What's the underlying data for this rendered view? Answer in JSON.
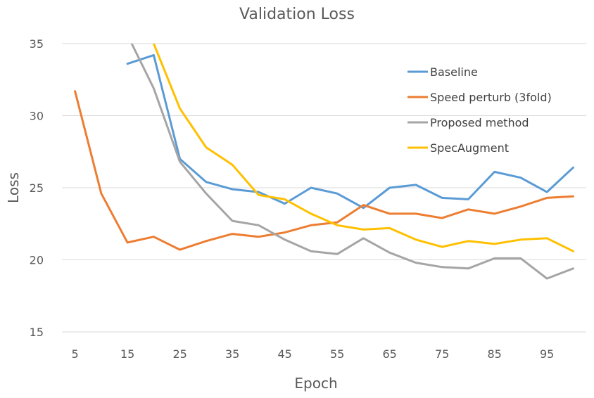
{
  "chart_data": {
    "type": "line",
    "title": "Validation Loss",
    "xlabel": "Epoch",
    "ylabel": "Loss",
    "x": [
      5,
      10,
      15,
      20,
      25,
      30,
      35,
      40,
      45,
      50,
      55,
      60,
      65,
      70,
      75,
      80,
      85,
      90,
      95,
      100
    ],
    "x_tick_labels": [
      "5",
      "15",
      "25",
      "35",
      "45",
      "55",
      "65",
      "75",
      "85",
      "95"
    ],
    "y_ticks": [
      15,
      20,
      25,
      30,
      35
    ],
    "ylim": [
      15,
      35
    ],
    "grid": "horizontal",
    "legend_position": "top-right",
    "series": [
      {
        "name": "Baseline",
        "color": "#5b9bd5",
        "values": [
          null,
          null,
          33.6,
          34.2,
          27.0,
          25.4,
          24.9,
          24.7,
          23.9,
          25.0,
          24.6,
          23.6,
          25.0,
          25.2,
          24.3,
          24.2,
          26.1,
          25.7,
          24.7,
          26.4
        ]
      },
      {
        "name": "Speed perturb (3fold)",
        "color": "#ed7d31",
        "values": [
          31.7,
          24.6,
          21.2,
          21.6,
          20.7,
          21.3,
          21.8,
          21.6,
          21.9,
          22.4,
          22.6,
          23.8,
          23.2,
          23.2,
          22.9,
          23.5,
          23.2,
          23.7,
          24.3,
          24.4
        ]
      },
      {
        "name": "Proposed method",
        "color": "#a5a5a5",
        "values": [
          null,
          null,
          35.6,
          31.9,
          26.8,
          24.6,
          22.7,
          22.4,
          21.4,
          20.6,
          20.4,
          21.5,
          20.5,
          19.8,
          19.5,
          19.4,
          20.1,
          20.1,
          18.7,
          19.4
        ]
      },
      {
        "name": "SpecAugment",
        "color": "#ffc000",
        "values": [
          null,
          null,
          null,
          35.0,
          30.5,
          27.8,
          26.6,
          24.5,
          24.2,
          23.2,
          22.4,
          22.1,
          22.2,
          21.4,
          20.9,
          21.3,
          21.1,
          21.4,
          21.5,
          20.6
        ]
      }
    ]
  }
}
